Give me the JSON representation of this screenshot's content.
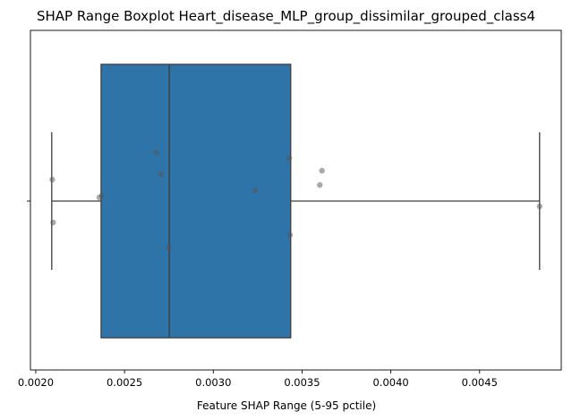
{
  "chart_data": {
    "type": "boxplot",
    "title": "SHAP Range Boxplot Heart_disease_MLP_group_dissimilar_grouped_class4",
    "xlabel": "Feature SHAP Range (5-95 pctile)",
    "ylabel": "",
    "orientation": "horizontal",
    "xlim": [
      0.00197,
      0.00496
    ],
    "x_ticks": [
      0.002,
      0.0025,
      0.003,
      0.0035,
      0.004,
      0.0045
    ],
    "x_tick_labels": [
      "0.0020",
      "0.0025",
      "0.0030",
      "0.0035",
      "0.0040",
      "0.0045"
    ],
    "grid": false,
    "box": {
      "whisker_low": 0.00209,
      "q1": 0.002368,
      "median": 0.002752,
      "q3": 0.003436,
      "whisker_high": 0.004838,
      "color": "#2f74a9",
      "edge_color": "#3d3d3d"
    },
    "points": [
      {
        "x": 0.002093,
        "jitter": 0.06
      },
      {
        "x": 0.002098,
        "jitter": -0.06
      },
      {
        "x": 0.002358,
        "jitter": 0.01
      },
      {
        "x": 0.002372,
        "jitter": 0.015
      },
      {
        "x": 0.00268,
        "jitter": 0.135
      },
      {
        "x": 0.002705,
        "jitter": 0.075
      },
      {
        "x": 0.00275,
        "jitter": -0.13
      },
      {
        "x": 0.003238,
        "jitter": 0.03
      },
      {
        "x": 0.003428,
        "jitter": 0.12
      },
      {
        "x": 0.003432,
        "jitter": -0.095
      },
      {
        "x": 0.0036,
        "jitter": 0.045
      },
      {
        "x": 0.003612,
        "jitter": 0.085
      },
      {
        "x": 0.004838,
        "jitter": -0.015
      }
    ],
    "point_color": "#555555"
  }
}
